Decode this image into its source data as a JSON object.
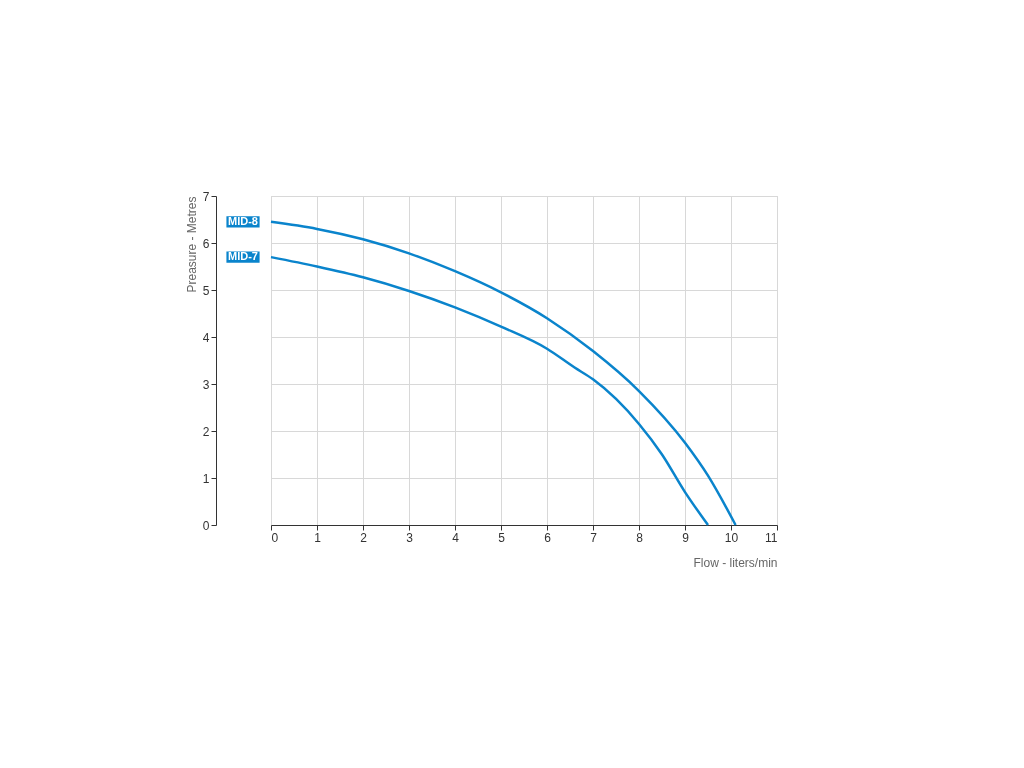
{
  "chart_data": {
    "type": "line",
    "xlabel": "Flow - liters/min",
    "ylabel": "Preasure - Metres",
    "xlim": [
      0,
      11
    ],
    "xticks": [
      0,
      1,
      2,
      3,
      4,
      5,
      6,
      7,
      8,
      9,
      10,
      11
    ],
    "ylim": [
      0,
      7
    ],
    "yticks": [
      0,
      1,
      2,
      3,
      4,
      5,
      6,
      7
    ],
    "grid": true,
    "legend": false,
    "series": [
      {
        "name": "MID-8",
        "color": "#0a84cc",
        "x": [
          0,
          1,
          2,
          3,
          4,
          5,
          6,
          7,
          8,
          9,
          9.5,
          10.1
        ],
        "values": [
          6.45,
          6.3,
          6.08,
          5.78,
          5.4,
          4.95,
          4.4,
          3.7,
          2.85,
          1.75,
          1.05,
          0
        ]
      },
      {
        "name": "MID-7",
        "color": "#0a84cc",
        "x": [
          0,
          1,
          2,
          3,
          4,
          5,
          6,
          6.6,
          7,
          8,
          8.5,
          9,
          9.5
        ],
        "values": [
          5.7,
          5.5,
          5.27,
          4.98,
          4.63,
          4.22,
          3.75,
          3.35,
          3.1,
          2.15,
          1.5,
          0.7,
          0
        ]
      }
    ]
  }
}
